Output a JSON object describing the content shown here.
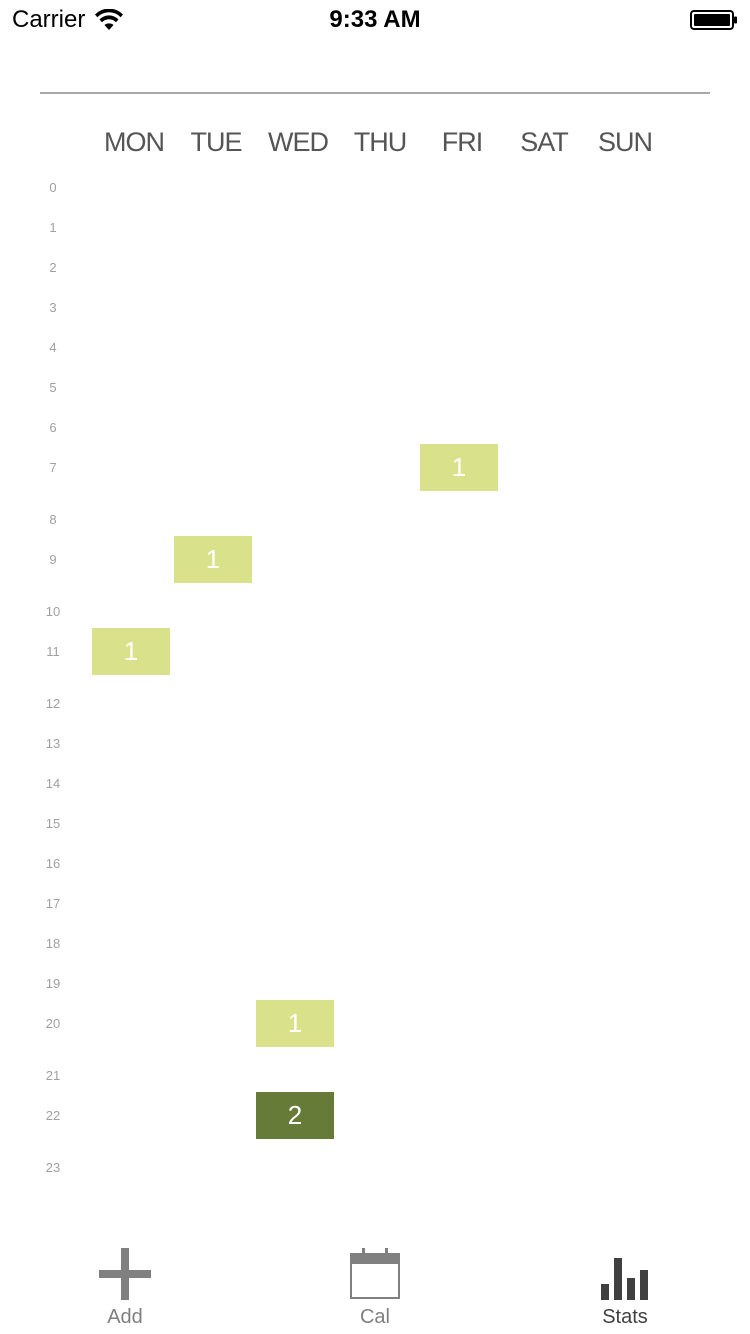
{
  "status_bar": {
    "carrier": "Carrier",
    "time": "9:33 AM",
    "icons": [
      "wifi-icon",
      "battery-icon"
    ]
  },
  "week_grid": {
    "days": [
      "MON",
      "TUE",
      "WED",
      "THU",
      "FRI",
      "SAT",
      "SUN"
    ],
    "hours": [
      "0",
      "1",
      "2",
      "3",
      "4",
      "5",
      "6",
      "7",
      "8",
      "9",
      "10",
      "11",
      "12",
      "13",
      "14",
      "15",
      "16",
      "17",
      "18",
      "19",
      "20",
      "21",
      "22",
      "23"
    ],
    "cells": [
      {
        "day": "FRI",
        "hour": 7,
        "count": "1",
        "level": 1
      },
      {
        "day": "TUE",
        "hour": 9,
        "count": "1",
        "level": 1
      },
      {
        "day": "MON",
        "hour": 11,
        "count": "1",
        "level": 1
      },
      {
        "day": "WED",
        "hour": 20,
        "count": "1",
        "level": 1
      },
      {
        "day": "WED",
        "hour": 22,
        "count": "2",
        "level": 2
      }
    ]
  },
  "colors": {
    "level_1": "#d9e28a",
    "level_2": "#667b38",
    "tab_inactive": "#808080",
    "tab_active": "#404040"
  },
  "tab_bar": {
    "tabs": [
      {
        "key": "add",
        "label": "Add",
        "icon": "plus-icon",
        "active": false
      },
      {
        "key": "cal",
        "label": "Cal",
        "icon": "calendar-icon",
        "active": false
      },
      {
        "key": "stats",
        "label": "Stats",
        "icon": "bar-chart-icon",
        "active": true
      }
    ]
  }
}
